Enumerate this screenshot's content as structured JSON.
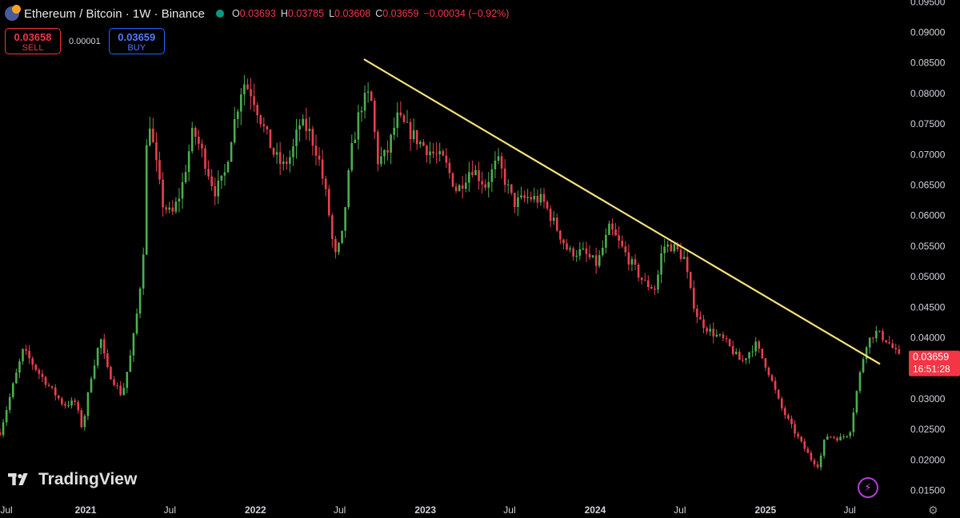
{
  "header": {
    "title": "Ethereum / Bitcoin · 1W · Binance",
    "ohlc": [
      {
        "key": "O",
        "value": "0.03693"
      },
      {
        "key": "H",
        "value": "0.03785"
      },
      {
        "key": "L",
        "value": "0.03608"
      },
      {
        "key": "C",
        "value": "0.03659"
      }
    ],
    "change": "−0.00034 (−0.92%)"
  },
  "trade": {
    "sell_price": "0.03658",
    "sell_label": "SELL",
    "spread": "0.00001",
    "buy_price": "0.03659",
    "buy_label": "BUY"
  },
  "price_tag": {
    "price": "0.03659",
    "countdown": "16:51:28",
    "value": 0.03659
  },
  "brand": {
    "name": "TradingView"
  },
  "colors": {
    "up": "#089981",
    "down": "#f23645",
    "up_candle": "#4caf50",
    "down_candle": "#e8404f",
    "trendline": "#f5e27a",
    "price_tag": "#f23645"
  },
  "chart_data": {
    "type": "candlestick",
    "timeframe": "1W",
    "x_range": [
      "2020-07-01",
      "2025-10-17"
    ],
    "ylim": [
      0.0135,
      0.0953
    ],
    "y_ticks": [
      "0.09500",
      "0.09000",
      "0.08500",
      "0.08000",
      "0.07500",
      "0.07000",
      "0.06500",
      "0.06000",
      "0.05500",
      "0.05000",
      "0.04500",
      "0.04000",
      "0.03500",
      "0.03000",
      "0.02500",
      "0.02000",
      "0.01500"
    ],
    "x_ticks": [
      {
        "label": "Jul",
        "date": "2020-07-01"
      },
      {
        "label": "2021",
        "date": "2021-01-01"
      },
      {
        "label": "Jul",
        "date": "2021-07-01"
      },
      {
        "label": "2022",
        "date": "2022-01-01"
      },
      {
        "label": "Jul",
        "date": "2022-07-01"
      },
      {
        "label": "2023",
        "date": "2023-01-01"
      },
      {
        "label": "Jul",
        "date": "2023-07-01"
      },
      {
        "label": "2024",
        "date": "2024-01-01"
      },
      {
        "label": "Jul",
        "date": "2024-07-01"
      },
      {
        "label": "2025",
        "date": "2025-01-01"
      },
      {
        "label": "Jul",
        "date": "2025-07-01"
      }
    ],
    "price_path": [
      [
        "2020-07-01",
        0.0245
      ],
      [
        "2020-08-01",
        0.033
      ],
      [
        "2020-08-20",
        0.038
      ],
      [
        "2020-09-20",
        0.0345
      ],
      [
        "2020-10-25",
        0.031
      ],
      [
        "2020-11-15",
        0.029
      ],
      [
        "2020-12-10",
        0.0295
      ],
      [
        "2020-12-25",
        0.025
      ],
      [
        "2021-01-12",
        0.0335
      ],
      [
        "2021-02-02",
        0.04
      ],
      [
        "2021-02-15",
        0.035
      ],
      [
        "2021-03-20",
        0.0305
      ],
      [
        "2021-04-10",
        0.038
      ],
      [
        "2021-04-25",
        0.046
      ],
      [
        "2021-05-08",
        0.057
      ],
      [
        "2021-05-14",
        0.078
      ],
      [
        "2021-05-25",
        0.072
      ],
      [
        "2021-06-15",
        0.062
      ],
      [
        "2021-07-05",
        0.06
      ],
      [
        "2021-07-25",
        0.064
      ],
      [
        "2021-08-20",
        0.074
      ],
      [
        "2021-09-10",
        0.07
      ],
      [
        "2021-10-05",
        0.064
      ],
      [
        "2021-10-25",
        0.066
      ],
      [
        "2021-11-10",
        0.073
      ],
      [
        "2021-12-05",
        0.082
      ],
      [
        "2021-12-25",
        0.08
      ],
      [
        "2022-01-20",
        0.074
      ],
      [
        "2022-02-10",
        0.07
      ],
      [
        "2022-03-01",
        0.068
      ],
      [
        "2022-03-20",
        0.07
      ],
      [
        "2022-04-05",
        0.075
      ],
      [
        "2022-04-25",
        0.074
      ],
      [
        "2022-05-15",
        0.07
      ],
      [
        "2022-06-05",
        0.062
      ],
      [
        "2022-06-20",
        0.053
      ],
      [
        "2022-07-05",
        0.056
      ],
      [
        "2022-07-25",
        0.07
      ],
      [
        "2022-08-15",
        0.078
      ],
      [
        "2022-09-05",
        0.08
      ],
      [
        "2022-09-20",
        0.069
      ],
      [
        "2022-10-10",
        0.07
      ],
      [
        "2022-11-01",
        0.076
      ],
      [
        "2022-11-25",
        0.074
      ],
      [
        "2022-12-20",
        0.072
      ],
      [
        "2023-01-20",
        0.07
      ],
      [
        "2023-02-10",
        0.069
      ],
      [
        "2023-03-10",
        0.064
      ],
      [
        "2023-04-10",
        0.068
      ],
      [
        "2023-05-10",
        0.065
      ],
      [
        "2023-06-05",
        0.069
      ],
      [
        "2023-06-20",
        0.066
      ],
      [
        "2023-07-10",
        0.062
      ],
      [
        "2023-08-10",
        0.063
      ],
      [
        "2023-09-10",
        0.0625
      ],
      [
        "2023-10-10",
        0.058
      ],
      [
        "2023-11-05",
        0.054
      ],
      [
        "2023-12-05",
        0.054
      ],
      [
        "2024-01-05",
        0.052
      ],
      [
        "2024-02-01",
        0.058
      ],
      [
        "2024-02-25",
        0.055
      ],
      [
        "2024-03-20",
        0.052
      ],
      [
        "2024-04-15",
        0.049
      ],
      [
        "2024-05-10",
        0.048
      ],
      [
        "2024-05-25",
        0.055
      ],
      [
        "2024-06-15",
        0.055
      ],
      [
        "2024-07-10",
        0.053
      ],
      [
        "2024-07-25",
        0.047
      ],
      [
        "2024-08-10",
        0.043
      ],
      [
        "2024-09-05",
        0.041
      ],
      [
        "2024-10-05",
        0.0395
      ],
      [
        "2024-11-10",
        0.036
      ],
      [
        "2024-12-10",
        0.039
      ],
      [
        "2025-01-05",
        0.035
      ],
      [
        "2025-02-01",
        0.029
      ],
      [
        "2025-03-01",
        0.025
      ],
      [
        "2025-04-10",
        0.02
      ],
      [
        "2025-04-25",
        0.019
      ],
      [
        "2025-05-10",
        0.024
      ],
      [
        "2025-06-10",
        0.0235
      ],
      [
        "2025-07-01",
        0.0245
      ],
      [
        "2025-07-20",
        0.033
      ],
      [
        "2025-08-05",
        0.039
      ],
      [
        "2025-08-25",
        0.041
      ],
      [
        "2025-09-20",
        0.0395
      ],
      [
        "2025-10-17",
        0.0366
      ]
    ],
    "trendline": [
      {
        "date": "2022-08-22",
        "price": 0.0856
      },
      {
        "date": "2025-10-17",
        "price": 0.0357
      }
    ]
  }
}
